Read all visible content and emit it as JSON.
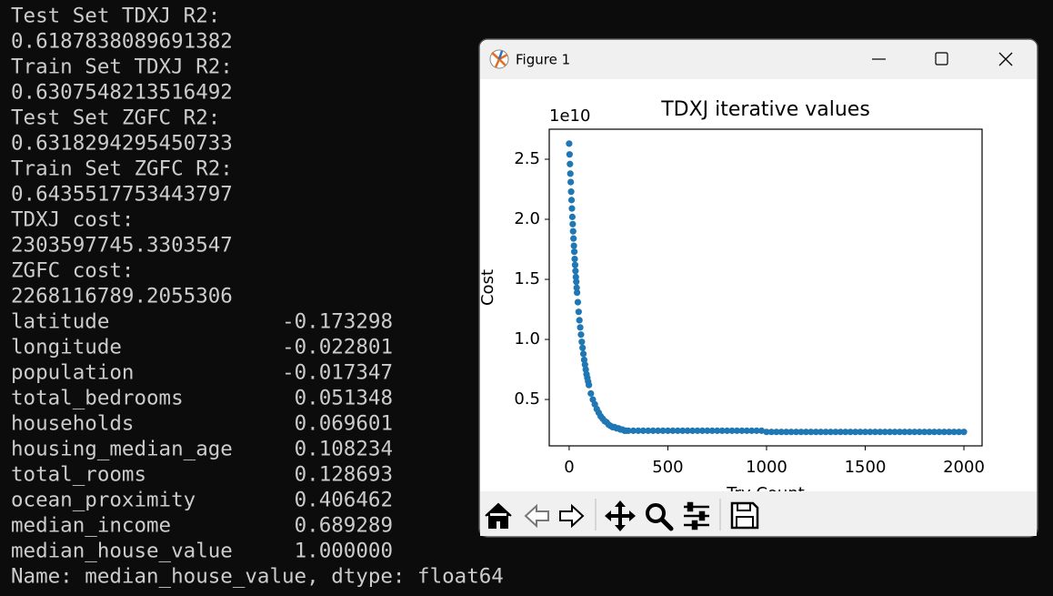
{
  "terminal": {
    "lines": [
      "Test Set TDXJ R2:",
      "0.6187838089691382",
      "Train Set TDXJ R2:",
      "0.6307548213516492",
      "Test Set ZGFC R2:",
      "0.6318294295450733",
      "Train Set ZGFC R2:",
      "0.6435517753443797",
      "TDXJ cost:",
      "2303597745.3303547",
      "ZGFC cost:",
      "2268116789.2055306"
    ],
    "series_table": {
      "rows": [
        [
          "latitude",
          "-0.173298"
        ],
        [
          "longitude",
          "-0.022801"
        ],
        [
          "population",
          "-0.017347"
        ],
        [
          "total_bedrooms",
          "0.051348"
        ],
        [
          "households",
          "0.069601"
        ],
        [
          "housing_median_age",
          "0.108234"
        ],
        [
          "total_rooms",
          "0.128693"
        ],
        [
          "ocean_proximity",
          "0.406462"
        ],
        [
          "median_income",
          "0.689289"
        ],
        [
          "median_house_value",
          "1.000000"
        ]
      ]
    },
    "footer": "Name: median_house_value, dtype: float64"
  },
  "figure_window": {
    "title": "Figure 1",
    "chart_data": {
      "type": "scatter",
      "title": "TDXJ iterative values",
      "y_offset_label": "1e10",
      "xlabel": "Try Count",
      "ylabel": "Cost",
      "color": "#1f77b4",
      "x": [
        0,
        2,
        4,
        6,
        8,
        10,
        12,
        14,
        16,
        18,
        20,
        22,
        24,
        26,
        28,
        30,
        32,
        34,
        36,
        38,
        40,
        44,
        48,
        52,
        56,
        60,
        64,
        68,
        72,
        76,
        80,
        84,
        88,
        92,
        96,
        100,
        110,
        120,
        130,
        140,
        150,
        160,
        170,
        180,
        190,
        200,
        210,
        220,
        230,
        240,
        250,
        260,
        270,
        280,
        290,
        300,
        325,
        350,
        375,
        400,
        425,
        450,
        475,
        500,
        525,
        550,
        575,
        600,
        625,
        650,
        675,
        700,
        725,
        750,
        775,
        800,
        825,
        850,
        875,
        900,
        925,
        950,
        975,
        1000,
        1025,
        1050,
        1075,
        1100,
        1125,
        1150,
        1175,
        1200,
        1225,
        1250,
        1275,
        1300,
        1325,
        1350,
        1375,
        1400,
        1425,
        1450,
        1475,
        1500,
        1525,
        1550,
        1575,
        1600,
        1625,
        1650,
        1675,
        1700,
        1725,
        1750,
        1775,
        1800,
        1825,
        1850,
        1875,
        1900,
        1925,
        1950,
        1975,
        2000
      ],
      "values": [
        2.63,
        2.54,
        2.46,
        2.38,
        2.31,
        2.23,
        2.16,
        2.09,
        2.02,
        1.96,
        1.9,
        1.84,
        1.78,
        1.73,
        1.67,
        1.62,
        1.57,
        1.52,
        1.48,
        1.43,
        1.39,
        1.31,
        1.23,
        1.16,
        1.1,
        1.04,
        0.98,
        0.93,
        0.88,
        0.83,
        0.79,
        0.75,
        0.71,
        0.68,
        0.65,
        0.62,
        0.55,
        0.5,
        0.46,
        0.42,
        0.39,
        0.36,
        0.34,
        0.32,
        0.31,
        0.29,
        0.28,
        0.27,
        0.27,
        0.26,
        0.26,
        0.25,
        0.25,
        0.24,
        0.24,
        0.24,
        0.24,
        0.24,
        0.24,
        0.24,
        0.24,
        0.24,
        0.24,
        0.24,
        0.24,
        0.24,
        0.24,
        0.24,
        0.24,
        0.24,
        0.24,
        0.24,
        0.24,
        0.24,
        0.24,
        0.24,
        0.24,
        0.24,
        0.24,
        0.24,
        0.24,
        0.24,
        0.24,
        0.23,
        0.23,
        0.23,
        0.23,
        0.23,
        0.23,
        0.23,
        0.23,
        0.23,
        0.23,
        0.23,
        0.23,
        0.23,
        0.23,
        0.23,
        0.23,
        0.23,
        0.23,
        0.23,
        0.23,
        0.23,
        0.23,
        0.23,
        0.23,
        0.23,
        0.23,
        0.23,
        0.23,
        0.23,
        0.23,
        0.23,
        0.23,
        0.23,
        0.23,
        0.23,
        0.23,
        0.23,
        0.23,
        0.23,
        0.23,
        0.23
      ],
      "xlim": [
        -101,
        2092
      ],
      "ylim": [
        0.114,
        2.75
      ],
      "xticks": [
        0,
        500,
        1000,
        1500,
        2000
      ],
      "yticks": [
        0.5,
        {
          "value": 1,
          "label": "1.0"
        },
        1.5,
        {
          "value": 2,
          "label": "2.0"
        },
        2.5
      ]
    }
  }
}
